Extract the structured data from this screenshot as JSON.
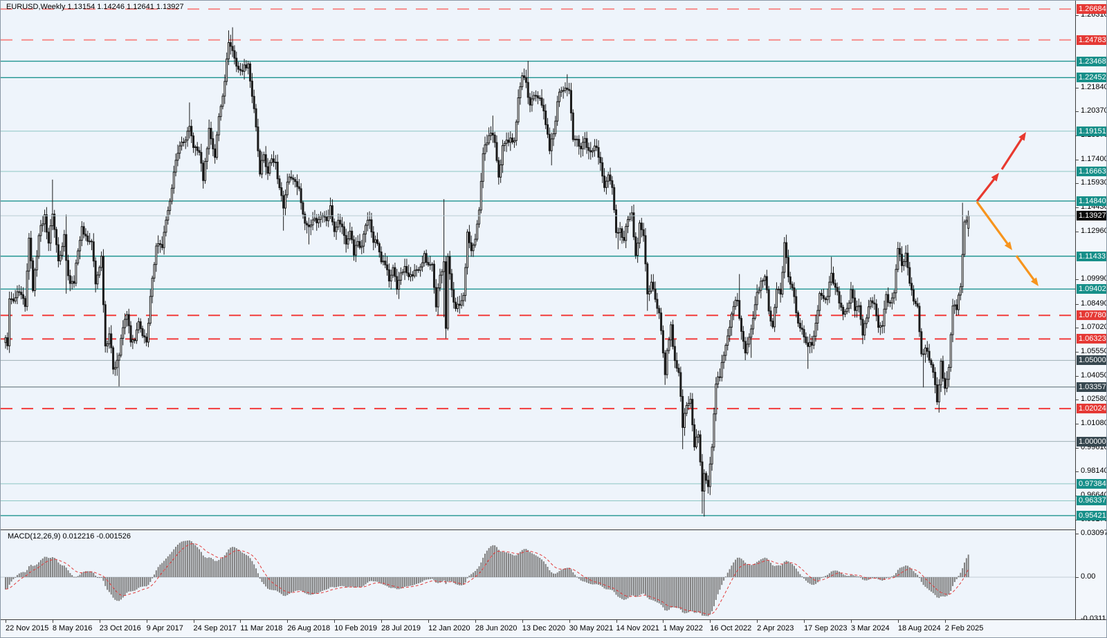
{
  "header": {
    "symbol_period": "EURUSD,Weekly",
    "ohlc_text": "1.13154 1.14246 1.12641 1.13927"
  },
  "macd_panel": {
    "label": "MACD(12,26,9)",
    "values_text": "0.012216 -0.001526",
    "axis": {
      "top": "0.030979",
      "zero": "0.00",
      "bottom": "-0.031121"
    }
  },
  "price_axis": {
    "plain_ticks": [
      "1.26310",
      "1.21840",
      "1.20370",
      "1.18870",
      "1.17400",
      "1.15930",
      "1.14430",
      "1.12960",
      "1.09990",
      "1.08490",
      "1.07020",
      "1.05550",
      "1.04050",
      "1.02580",
      "1.01080",
      "0.99610",
      "0.98140",
      "0.96640",
      "0.95170"
    ],
    "badges": [
      {
        "label": "1.26684",
        "price": 1.26684,
        "type": "red",
        "line": "dashed",
        "light": true
      },
      {
        "label": "1.24783",
        "price": 1.24783,
        "type": "red",
        "line": "dashed",
        "light": true
      },
      {
        "label": "1.23468",
        "price": 1.23468,
        "type": "teal",
        "line": "solid",
        "light": false
      },
      {
        "label": "1.22452",
        "price": 1.22452,
        "type": "teal",
        "line": "solid",
        "light": false
      },
      {
        "label": "1.19151",
        "price": 1.19151,
        "type": "teal",
        "line": "solid",
        "light": true
      },
      {
        "label": "1.16663",
        "price": 1.16663,
        "type": "teal",
        "line": "solid",
        "light": true
      },
      {
        "label": "1.14840",
        "price": 1.1484,
        "type": "teal",
        "line": "solid",
        "light": false
      },
      {
        "label": "1.13927",
        "price": 1.13927,
        "type": "black",
        "line": "current",
        "light": false
      },
      {
        "label": "1.11433",
        "price": 1.11433,
        "type": "teal",
        "line": "solid",
        "light": false
      },
      {
        "label": "1.09402",
        "price": 1.09402,
        "type": "teal",
        "line": "solid",
        "light": false
      },
      {
        "label": "1.07780",
        "price": 1.0778,
        "type": "red",
        "line": "dashed",
        "light": false
      },
      {
        "label": "1.06323",
        "price": 1.06323,
        "type": "red",
        "line": "dashed",
        "light": false
      },
      {
        "label": "1.05000",
        "price": 1.05,
        "type": "dark",
        "line": "gray",
        "light": true
      },
      {
        "label": "1.03357",
        "price": 1.03357,
        "type": "dark",
        "line": "gray",
        "light": false
      },
      {
        "label": "1.02024",
        "price": 1.02024,
        "type": "red",
        "line": "dashed",
        "light": false
      },
      {
        "label": "1.00000",
        "price": 1.0,
        "type": "dark",
        "line": "gray",
        "light": true
      },
      {
        "label": "0.97384",
        "price": 0.97384,
        "type": "teal",
        "line": "solid",
        "light": true
      },
      {
        "label": "0.96337",
        "price": 0.96337,
        "type": "teal",
        "line": "solid",
        "light": true
      },
      {
        "label": "0.95421",
        "price": 0.95421,
        "type": "teal",
        "line": "solid",
        "light": false
      }
    ]
  },
  "date_axis": [
    {
      "label": "22 Nov 2015",
      "week": 0
    },
    {
      "label": "8 May 2016",
      "week": 24
    },
    {
      "label": "23 Oct 2016",
      "week": 48
    },
    {
      "label": "9 Apr 2017",
      "week": 72
    },
    {
      "label": "24 Sep 2017",
      "week": 96
    },
    {
      "label": "11 Mar 2018",
      "week": 120
    },
    {
      "label": "26 Aug 2018",
      "week": 144
    },
    {
      "label": "10 Feb 2019",
      "week": 168
    },
    {
      "label": "28 Jul 2019",
      "week": 192
    },
    {
      "label": "12 Jan 2020",
      "week": 216
    },
    {
      "label": "28 Jun 2020",
      "week": 240
    },
    {
      "label": "13 Dec 2020",
      "week": 264
    },
    {
      "label": "30 May 2021",
      "week": 288
    },
    {
      "label": "14 Nov 2021",
      "week": 312
    },
    {
      "label": "1 May 2022",
      "week": 336
    },
    {
      "label": "16 Oct 2022",
      "week": 360
    },
    {
      "label": "2 Apr 2023",
      "week": 384
    },
    {
      "label": "17 Sep 2023",
      "week": 408
    },
    {
      "label": "3 Mar 2024",
      "week": 432
    },
    {
      "label": "18 Aug 2024",
      "week": 456
    },
    {
      "label": "2 Feb 2025",
      "week": 480
    }
  ],
  "drawings": {
    "arrows": [
      {
        "name": "bullish-projection-arrow",
        "color": "#e8392f",
        "segments": [
          [
            1411,
            290,
            1443,
            249
          ],
          [
            1447,
            244,
            1482,
            190
          ]
        ]
      },
      {
        "name": "bearish-projection-arrow",
        "color": "#f7941d",
        "segments": [
          [
            1411,
            291,
            1462,
            361
          ],
          [
            1468,
            369,
            1500,
            413
          ]
        ]
      }
    ]
  },
  "colors": {
    "background": "#eef4fb",
    "scale_background": "#f3f7fc",
    "candle": "#1a1a1a",
    "candle_up_fill": "#ffffff",
    "teal_line": "#1f9490",
    "teal_line_light": "#8cc6c3",
    "red_line": "#f23b3b",
    "red_line_light": "#f78b8b",
    "gray_line": "#9fb0b5",
    "gray_line_dark": "#54676d",
    "current_price_line": "#b9cdd2",
    "macd_bar": "#7f7f7f",
    "macd_signal": "#e23b3b"
  },
  "chart_data": {
    "type": "candlestick",
    "symbol": "EURUSD",
    "timeframe": "Weekly",
    "x_range_weeks": [
      0,
      492
    ],
    "price_range": [
      0.9517,
      1.2668
    ],
    "current_bar": {
      "open": 1.13154,
      "high": 1.14246,
      "low": 1.12641,
      "close": 1.13927
    },
    "macd": {
      "period_fast": 12,
      "period_slow": 26,
      "period_signal": 9,
      "main": 0.012216,
      "signal": -0.001526,
      "scale_max": 0.030979,
      "scale_min": -0.031121
    },
    "price_anchors": [
      [
        0,
        1.064
      ],
      [
        1,
        1.059
      ],
      [
        2,
        1.088
      ],
      [
        4,
        1.0866
      ],
      [
        7,
        1.0921
      ],
      [
        10,
        1.0833
      ],
      [
        12,
        1.1255
      ],
      [
        14,
        1.0931
      ],
      [
        17,
        1.127
      ],
      [
        20,
        1.1399
      ],
      [
        22,
        1.1224
      ],
      [
        24,
        1.1403
      ],
      [
        27,
        1.1114
      ],
      [
        30,
        1.1277
      ],
      [
        31,
        1.1117
      ],
      [
        33,
        1.0975
      ],
      [
        35,
        1.0976
      ],
      [
        37,
        1.1176
      ],
      [
        39,
        1.1326
      ],
      [
        42,
        1.1235
      ],
      [
        44,
        1.1232
      ],
      [
        46,
        1.0972
      ],
      [
        49,
        1.1143
      ],
      [
        51,
        1.0589
      ],
      [
        53,
        1.0664
      ],
      [
        55,
        1.0446
      ],
      [
        58,
        1.0532
      ],
      [
        60,
        1.0702
      ],
      [
        62,
        1.0783
      ],
      [
        64,
        1.0613
      ],
      [
        66,
        1.0622
      ],
      [
        68,
        1.0739
      ],
      [
        70,
        1.0652
      ],
      [
        72,
        1.0613
      ],
      [
        74,
        1.0895
      ],
      [
        77,
        1.1206
      ],
      [
        80,
        1.1196
      ],
      [
        83,
        1.1425
      ],
      [
        86,
        1.1662
      ],
      [
        89,
        1.1824
      ],
      [
        92,
        1.186
      ],
      [
        94,
        1.1945
      ],
      [
        96,
        1.1814
      ],
      [
        99,
        1.1784
      ],
      [
        101,
        1.161
      ],
      [
        104,
        1.1933
      ],
      [
        107,
        1.1753
      ],
      [
        109,
        1.2005
      ],
      [
        112,
        1.2222
      ],
      [
        114,
        1.2462
      ],
      [
        116,
        1.2412
      ],
      [
        118,
        1.2316
      ],
      [
        120,
        1.229
      ],
      [
        122,
        1.2324
      ],
      [
        124,
        1.233
      ],
      [
        126,
        1.213
      ],
      [
        128,
        1.1941
      ],
      [
        130,
        1.165
      ],
      [
        132,
        1.177
      ],
      [
        134,
        1.1655
      ],
      [
        136,
        1.1744
      ],
      [
        138,
        1.1724
      ],
      [
        140,
        1.1566
      ],
      [
        142,
        1.144
      ],
      [
        144,
        1.1601
      ],
      [
        146,
        1.1625
      ],
      [
        148,
        1.1604
      ],
      [
        150,
        1.156
      ],
      [
        152,
        1.1403
      ],
      [
        154,
        1.1336
      ],
      [
        156,
        1.1336
      ],
      [
        158,
        1.1377
      ],
      [
        160,
        1.137
      ],
      [
        162,
        1.1395
      ],
      [
        164,
        1.1362
      ],
      [
        166,
        1.1455
      ],
      [
        168,
        1.1295
      ],
      [
        170,
        1.1365
      ],
      [
        172,
        1.1325
      ],
      [
        174,
        1.1218
      ],
      [
        176,
        1.1298
      ],
      [
        178,
        1.115
      ],
      [
        180,
        1.1234
      ],
      [
        182,
        1.1205
      ],
      [
        184,
        1.1334
      ],
      [
        186,
        1.1368
      ],
      [
        188,
        1.1228
      ],
      [
        190,
        1.1221
      ],
      [
        192,
        1.1108
      ],
      [
        194,
        1.109
      ],
      [
        196,
        1.099
      ],
      [
        198,
        1.1073
      ],
      [
        200,
        1.0939
      ],
      [
        202,
        1.104
      ],
      [
        204,
        1.108
      ],
      [
        206,
        1.1017
      ],
      [
        208,
        1.1021
      ],
      [
        210,
        1.106
      ],
      [
        212,
        1.1077
      ],
      [
        214,
        1.116
      ],
      [
        216,
        1.109
      ],
      [
        218,
        1.1094
      ],
      [
        220,
        1.083
      ],
      [
        222,
        1.1026
      ],
      [
        224,
        1.1109
      ],
      [
        225,
        1.0698
      ],
      [
        226,
        1.1141
      ],
      [
        228,
        1.0936
      ],
      [
        230,
        1.082
      ],
      [
        232,
        1.084
      ],
      [
        234,
        1.0901
      ],
      [
        236,
        1.1292
      ],
      [
        238,
        1.1177
      ],
      [
        240,
        1.1248
      ],
      [
        242,
        1.1428
      ],
      [
        244,
        1.1776
      ],
      [
        246,
        1.1842
      ],
      [
        248,
        1.1903
      ],
      [
        250,
        1.1845
      ],
      [
        252,
        1.1631
      ],
      [
        254,
        1.1826
      ],
      [
        256,
        1.186
      ],
      [
        258,
        1.1873
      ],
      [
        260,
        1.1857
      ],
      [
        262,
        1.2121
      ],
      [
        264,
        1.2257
      ],
      [
        266,
        1.2216
      ],
      [
        268,
        1.2076
      ],
      [
        270,
        1.2136
      ],
      [
        272,
        1.212
      ],
      [
        274,
        1.2075
      ],
      [
        276,
        1.1955
      ],
      [
        278,
        1.1794
      ],
      [
        280,
        1.1899
      ],
      [
        282,
        1.2097
      ],
      [
        284,
        1.2166
      ],
      [
        286,
        1.2181
      ],
      [
        288,
        1.2166
      ],
      [
        290,
        1.1863
      ],
      [
        292,
        1.1865
      ],
      [
        294,
        1.1806
      ],
      [
        296,
        1.187
      ],
      [
        298,
        1.1795
      ],
      [
        300,
        1.1795
      ],
      [
        302,
        1.1814
      ],
      [
        304,
        1.172
      ],
      [
        306,
        1.1567
      ],
      [
        308,
        1.1645
      ],
      [
        310,
        1.1567
      ],
      [
        312,
        1.1289
      ],
      [
        314,
        1.1313
      ],
      [
        316,
        1.124
      ],
      [
        318,
        1.137
      ],
      [
        320,
        1.1411
      ],
      [
        322,
        1.1148
      ],
      [
        324,
        1.1348
      ],
      [
        326,
        1.127
      ],
      [
        328,
        1.091
      ],
      [
        330,
        1.0983
      ],
      [
        332,
        1.0877
      ],
      [
        334,
        1.0793
      ],
      [
        336,
        1.0546
      ],
      [
        337,
        1.0412
      ],
      [
        338,
        1.0561
      ],
      [
        340,
        1.072
      ],
      [
        342,
        1.0499
      ],
      [
        344,
        1.0425
      ],
      [
        346,
        1.0086
      ],
      [
        348,
        1.0222
      ],
      [
        350,
        1.026
      ],
      [
        352,
        0.9966
      ],
      [
        354,
        1.0041
      ],
      [
        356,
        0.9693
      ],
      [
        357,
        0.9802
      ],
      [
        359,
        0.9721
      ],
      [
        361,
        0.9965
      ],
      [
        363,
        1.0354
      ],
      [
        365,
        1.0395
      ],
      [
        367,
        1.0531
      ],
      [
        370,
        1.0705
      ],
      [
        372,
        1.0833
      ],
      [
        374,
        1.087
      ],
      [
        376,
        1.0679
      ],
      [
        378,
        1.0546
      ],
      [
        380,
        1.0643
      ],
      [
        382,
        1.076
      ],
      [
        384,
        1.092
      ],
      [
        386,
        1.0989
      ],
      [
        388,
        1.1018
      ],
      [
        390,
        1.0805
      ],
      [
        392,
        1.0707
      ],
      [
        394,
        1.0939
      ],
      [
        396,
        1.0909
      ],
      [
        398,
        1.1227
      ],
      [
        400,
        1.1016
      ],
      [
        402,
        1.0948
      ],
      [
        404,
        1.0794
      ],
      [
        406,
        1.07
      ],
      [
        408,
        1.0645
      ],
      [
        410,
        1.0586
      ],
      [
        412,
        1.0594
      ],
      [
        414,
        1.073
      ],
      [
        416,
        1.0914
      ],
      [
        418,
        1.0882
      ],
      [
        420,
        1.0895
      ],
      [
        422,
        1.1038
      ],
      [
        424,
        1.0951
      ],
      [
        426,
        1.0854
      ],
      [
        428,
        1.0785
      ],
      [
        430,
        1.0821
      ],
      [
        432,
        1.0937
      ],
      [
        434,
        1.0808
      ],
      [
        436,
        1.0838
      ],
      [
        438,
        1.0656
      ],
      [
        440,
        1.0762
      ],
      [
        442,
        1.0868
      ],
      [
        444,
        1.0848
      ],
      [
        446,
        1.0704
      ],
      [
        448,
        1.0713
      ],
      [
        450,
        1.0907
      ],
      [
        452,
        1.0855
      ],
      [
        454,
        1.0917
      ],
      [
        456,
        1.1191
      ],
      [
        458,
        1.1085
      ],
      [
        460,
        1.1162
      ],
      [
        462,
        1.0976
      ],
      [
        464,
        1.0866
      ],
      [
        466,
        1.0834
      ],
      [
        468,
        1.054
      ],
      [
        470,
        1.0577
      ],
      [
        472,
        1.0501
      ],
      [
        474,
        1.0427
      ],
      [
        476,
        1.0244
      ],
      [
        478,
        1.0495
      ],
      [
        480,
        1.0328
      ],
      [
        482,
        1.0457
      ],
      [
        484,
        1.0836
      ],
      [
        486,
        1.0813
      ],
      [
        488,
        1.0955
      ],
      [
        490,
        1.1355
      ],
      [
        491,
        1.1365
      ],
      [
        492,
        1.13927
      ]
    ],
    "wick_overrides": [
      [
        24,
        1.1616,
        null
      ],
      [
        31,
        1.14,
        1.0912
      ],
      [
        58,
        null,
        1.034
      ],
      [
        94,
        1.2092,
        null
      ],
      [
        114,
        1.2537,
        null
      ],
      [
        116,
        1.2556,
        null
      ],
      [
        142,
        null,
        1.1301
      ],
      [
        155,
        null,
        1.1216
      ],
      [
        201,
        null,
        1.0879
      ],
      [
        221,
        null,
        1.0778
      ],
      [
        224,
        1.1495,
        1.0767
      ],
      [
        225,
        null,
        1.0636
      ],
      [
        249,
        1.2011,
        null
      ],
      [
        267,
        1.2349,
        null
      ],
      [
        279,
        null,
        1.1704
      ],
      [
        287,
        1.2266,
        null
      ],
      [
        313,
        null,
        1.1186
      ],
      [
        328,
        null,
        1.0806
      ],
      [
        337,
        null,
        1.0349
      ],
      [
        346,
        null,
        0.9952
      ],
      [
        356,
        null,
        0.9554
      ],
      [
        357,
        null,
        0.9536
      ],
      [
        375,
        1.1033,
        null
      ],
      [
        381,
        null,
        1.0516
      ],
      [
        399,
        1.1276,
        null
      ],
      [
        410,
        null,
        1.0448
      ],
      [
        422,
        1.1139,
        null
      ],
      [
        438,
        null,
        1.0601
      ],
      [
        461,
        1.1214,
        null
      ],
      [
        469,
        null,
        1.0333
      ],
      [
        477,
        null,
        1.0178
      ],
      [
        489,
        1.1473,
        null
      ],
      [
        492,
        1.14246,
        1.12641
      ]
    ]
  }
}
